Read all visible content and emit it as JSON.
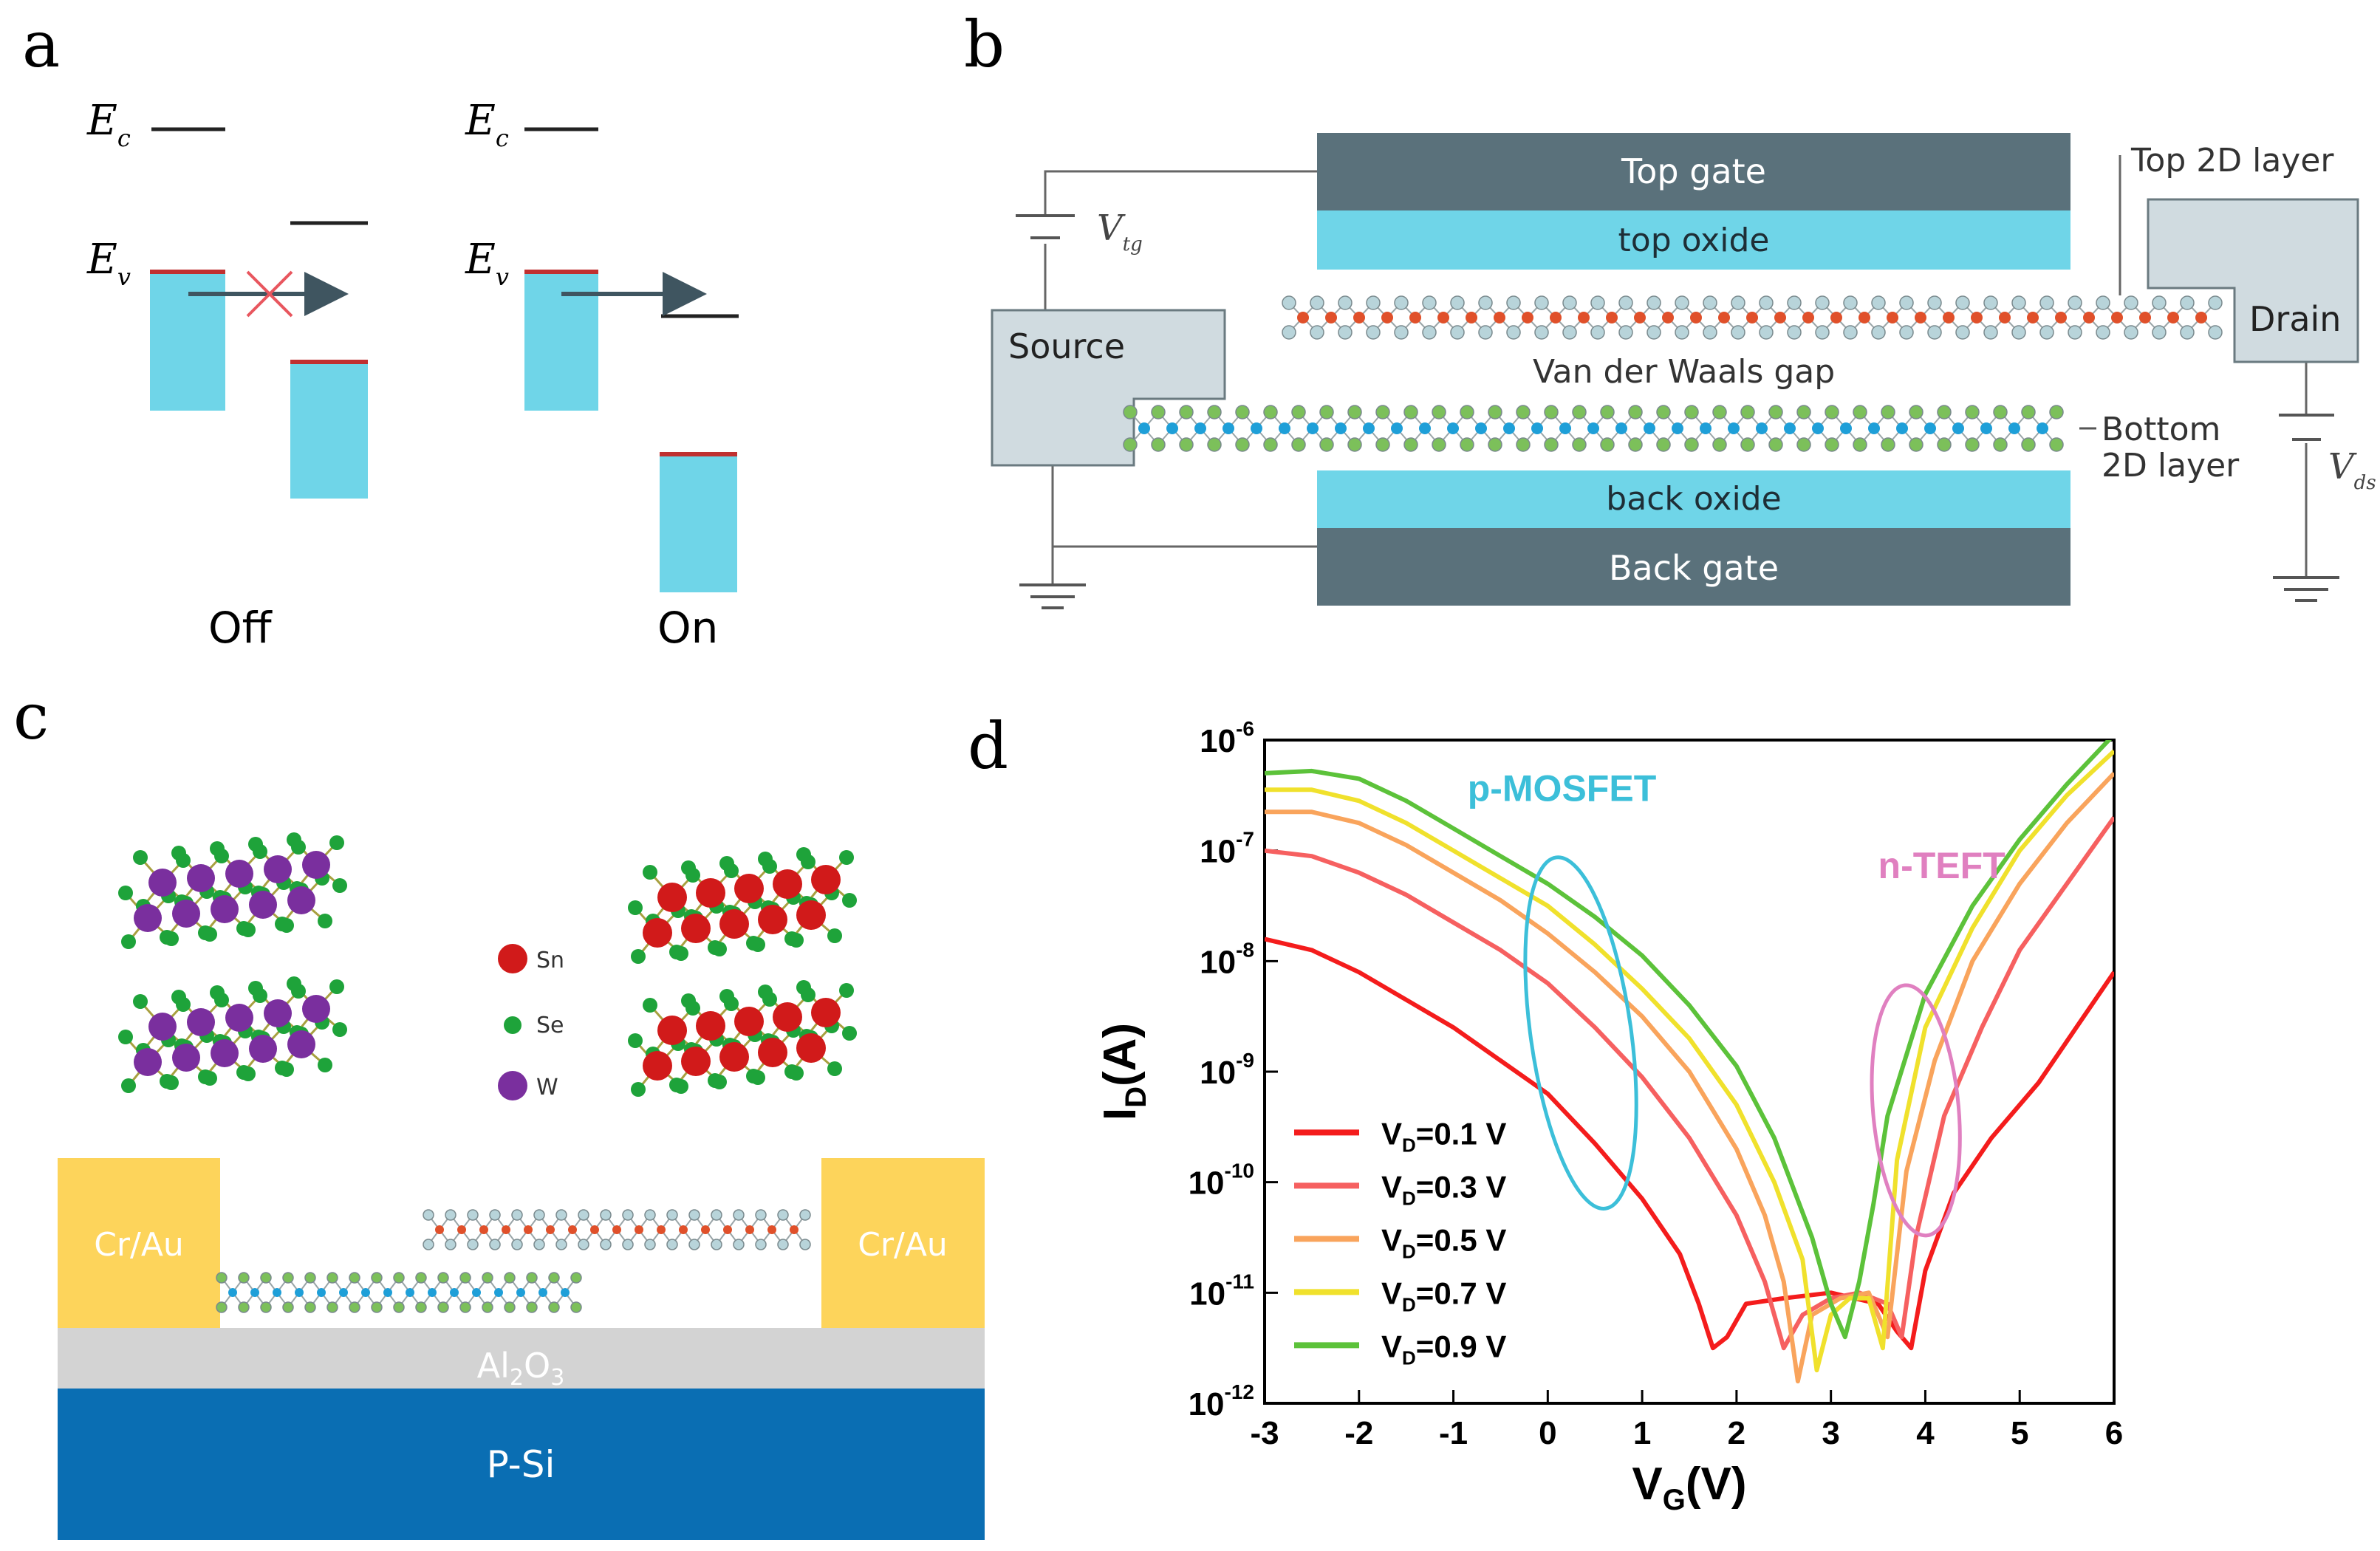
{
  "panels": {
    "a": {
      "letter": "a",
      "ec_sym": "E",
      "ec_sub": "c",
      "ev_sym": "E",
      "ev_sub": "v",
      "off_label": "Off",
      "on_label": "On",
      "band_color": "#6fd5e8",
      "cross_color": "#e8565e",
      "arrow_color": "#3f5560"
    },
    "b": {
      "letter": "b",
      "top_gate": "Top gate",
      "top_oxide": "top oxide",
      "back_oxide": "back oxide",
      "back_gate": "Back gate",
      "source": "Source",
      "drain": "Drain",
      "vdw_gap": "Van der Waals gap",
      "top_layer_label": "Top 2D layer",
      "bottom_layer_line1": "Bottom",
      "bottom_layer_line2": "2D layer",
      "vtg_sym": "V",
      "vtg_sub": "tg",
      "vds_sym": "V",
      "vds_sub": "ds",
      "gate_color": "#5a717b",
      "oxide_color": "#6fd5e8",
      "electrode_color": "#d0dbe0"
    },
    "c": {
      "letter": "c",
      "legend": [
        "Sn",
        "Se",
        "W"
      ],
      "contact_left": "Cr/Au",
      "contact_right": "Cr/Au",
      "dielectric_main": "Al",
      "dielectric_sub": "2",
      "dielectric_main2": "O",
      "dielectric_sub2": "3",
      "substrate": "P-Si",
      "contact_color": "#fdd45b",
      "dielectric_color": "#d3d3d3",
      "substrate_color": "#0a6eb3"
    },
    "d": {
      "letter": "d"
    }
  },
  "chart_data": {
    "type": "line",
    "title": "",
    "xlabel_main": "V",
    "xlabel_sub": "G",
    "xlabel_unit": "(V)",
    "ylabel_main": "I",
    "ylabel_sub": "D",
    "ylabel_unit": "(A)",
    "yscale": "log",
    "xlim": [
      -3,
      6
    ],
    "ylim_exp": [
      -12,
      -6
    ],
    "xticks": [
      "-3",
      "-2",
      "-1",
      "0",
      "1",
      "2",
      "3",
      "4",
      "5",
      "6"
    ],
    "ytick_base": "10",
    "yticks_exp": [
      "-12",
      "-11",
      "-10",
      "-9",
      "-8",
      "-7",
      "-6"
    ],
    "annotations": [
      {
        "text": "p-MOSFET",
        "color": "#3cbfd9"
      },
      {
        "text": "n-TEFT",
        "color": "#e080c0"
      }
    ],
    "legend_position": "lower-left",
    "series": [
      {
        "name_main": "V",
        "name_sub": "D",
        "name_rest": "=0.1 V",
        "color": "#f41c1c",
        "x": [
          -3,
          -2.5,
          -2,
          -1.5,
          -1,
          -0.5,
          0,
          0.5,
          1,
          1.4,
          1.6,
          1.75,
          1.9,
          2.1,
          2.5,
          3.0,
          3.5,
          3.7,
          3.85,
          4.0,
          4.3,
          4.7,
          5.2,
          5.6,
          6.0
        ],
        "y": [
          -7.8,
          -7.9,
          -8.1,
          -8.35,
          -8.6,
          -8.9,
          -9.2,
          -9.65,
          -10.15,
          -10.65,
          -11.1,
          -11.5,
          -11.4,
          -11.1,
          -11.05,
          -11.0,
          -11.1,
          -11.35,
          -11.5,
          -10.8,
          -10.1,
          -9.6,
          -9.1,
          -8.6,
          -8.1
        ]
      },
      {
        "name_main": "V",
        "name_sub": "D",
        "name_rest": "=0.3 V",
        "color": "#f66060",
        "x": [
          -3,
          -2.5,
          -2,
          -1.5,
          -1,
          -0.5,
          0,
          0.5,
          1,
          1.5,
          2.0,
          2.3,
          2.5,
          2.7,
          3.0,
          3.3,
          3.6,
          3.75,
          3.9,
          4.2,
          4.6,
          5.0,
          5.5,
          6.0
        ],
        "y": [
          -7.0,
          -7.05,
          -7.2,
          -7.4,
          -7.65,
          -7.9,
          -8.2,
          -8.6,
          -9.05,
          -9.6,
          -10.3,
          -10.9,
          -11.5,
          -11.2,
          -11.05,
          -11.0,
          -11.1,
          -11.4,
          -10.5,
          -9.4,
          -8.6,
          -7.9,
          -7.3,
          -6.7
        ]
      },
      {
        "name_main": "V",
        "name_sub": "D",
        "name_rest": "=0.5 V",
        "color": "#f9a45c",
        "x": [
          -3,
          -2.5,
          -2,
          -1.5,
          -1,
          -0.5,
          0,
          0.5,
          1,
          1.5,
          2.0,
          2.3,
          2.5,
          2.65,
          2.8,
          3.1,
          3.4,
          3.6,
          3.8,
          4.1,
          4.5,
          5.0,
          5.5,
          6.0
        ],
        "y": [
          -6.65,
          -6.65,
          -6.75,
          -6.95,
          -7.2,
          -7.45,
          -7.75,
          -8.1,
          -8.5,
          -9.0,
          -9.7,
          -10.3,
          -10.9,
          -11.8,
          -11.2,
          -11.05,
          -11.0,
          -11.4,
          -9.9,
          -8.9,
          -8.0,
          -7.3,
          -6.75,
          -6.3
        ]
      },
      {
        "name_main": "V",
        "name_sub": "D",
        "name_rest": "=0.7 V",
        "color": "#f0e12c",
        "x": [
          -3,
          -2.5,
          -2,
          -1.5,
          -1,
          -0.5,
          0,
          0.5,
          1,
          1.5,
          2.0,
          2.4,
          2.7,
          2.85,
          3.0,
          3.2,
          3.4,
          3.55,
          3.7,
          4.0,
          4.5,
          5.0,
          5.5,
          6.0
        ],
        "y": [
          -6.45,
          -6.45,
          -6.55,
          -6.75,
          -7.0,
          -7.25,
          -7.5,
          -7.85,
          -8.25,
          -8.7,
          -9.3,
          -10.0,
          -10.7,
          -11.7,
          -11.2,
          -11.05,
          -11.05,
          -11.5,
          -9.8,
          -8.6,
          -7.7,
          -7.0,
          -6.5,
          -6.1
        ]
      },
      {
        "name_main": "V",
        "name_sub": "D",
        "name_rest": "=0.9 V",
        "color": "#5cc23a",
        "x": [
          -3,
          -2.5,
          -2,
          -1.5,
          -1,
          -0.5,
          0,
          0.5,
          1,
          1.5,
          2.0,
          2.4,
          2.8,
          3.0,
          3.15,
          3.3,
          3.45,
          3.6,
          4.0,
          4.5,
          5.0,
          5.5,
          6.0
        ],
        "y": [
          -6.3,
          -6.28,
          -6.35,
          -6.55,
          -6.8,
          -7.05,
          -7.3,
          -7.6,
          -7.95,
          -8.4,
          -8.95,
          -9.6,
          -10.5,
          -11.1,
          -11.4,
          -10.9,
          -10.2,
          -9.4,
          -8.3,
          -7.5,
          -6.9,
          -6.4,
          -5.95
        ]
      }
    ]
  }
}
